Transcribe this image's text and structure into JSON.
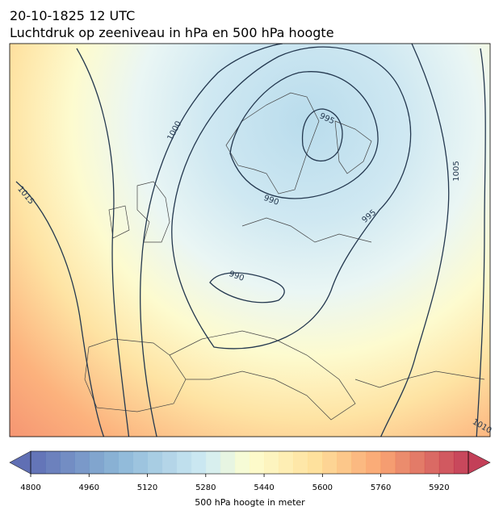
{
  "title": "20-10-1825 12 UTC",
  "subtitle": "Luchtdruk op zeeniveau in hPa en 500 hPa hoogte",
  "contour_labels": [
    1015,
    1000,
    995,
    990,
    995,
    990,
    1005,
    1010
  ],
  "colorbar": {
    "lim": [
      4800,
      6000
    ],
    "step": 40,
    "ticks": [
      4800,
      4960,
      5120,
      5280,
      5440,
      5600,
      5760,
      5920
    ],
    "label": "500 hPa hoogte in meter"
  }
}
